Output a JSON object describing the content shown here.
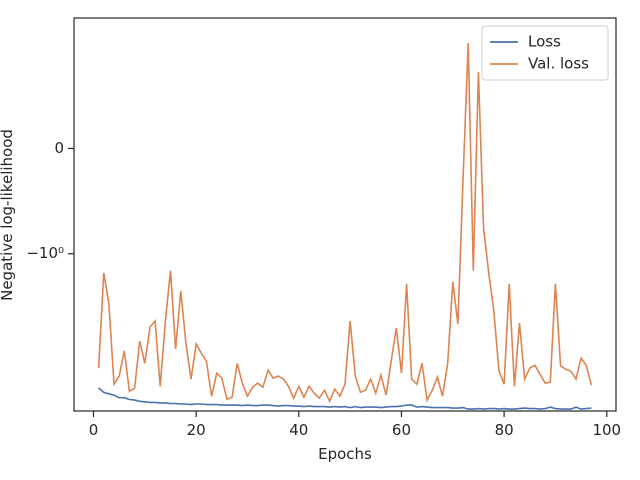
{
  "chart_data": {
    "type": "line",
    "xlabel": "Epochs",
    "ylabel": "Negative log-likelihood",
    "x": [
      1,
      2,
      3,
      4,
      5,
      6,
      7,
      8,
      9,
      10,
      11,
      12,
      13,
      14,
      15,
      16,
      17,
      18,
      19,
      20,
      21,
      22,
      23,
      24,
      25,
      26,
      27,
      28,
      29,
      30,
      31,
      32,
      33,
      34,
      35,
      36,
      37,
      38,
      39,
      40,
      41,
      42,
      43,
      44,
      45,
      46,
      47,
      48,
      49,
      50,
      51,
      52,
      53,
      54,
      55,
      56,
      57,
      58,
      59,
      60,
      61,
      62,
      63,
      64,
      65,
      66,
      67,
      68,
      69,
      70,
      71,
      72,
      73,
      74,
      75,
      76,
      77,
      78,
      79,
      80,
      81,
      82,
      83,
      84,
      85,
      86,
      87,
      88,
      89,
      90,
      91,
      92,
      93,
      94,
      95,
      96,
      97
    ],
    "series": [
      {
        "name": "Loss",
        "color": "#4c72b0",
        "values": [
          -26,
          -29,
          -30,
          -31,
          -33,
          -33,
          -34.5,
          -35,
          -36,
          -36.5,
          -37,
          -37,
          -37.5,
          -37.5,
          -38,
          -38,
          -38.5,
          -38.5,
          -39,
          -38.5,
          -38.5,
          -39,
          -39,
          -39,
          -39.5,
          -39.5,
          -39.5,
          -39.5,
          -40,
          -39.5,
          -40,
          -40,
          -39.5,
          -39.5,
          -40,
          -40.5,
          -40,
          -40,
          -40.5,
          -40.5,
          -41,
          -40.5,
          -41,
          -41,
          -41,
          -41.5,
          -41,
          -41.5,
          -41,
          -42,
          -41,
          -42,
          -41.5,
          -41.5,
          -41.5,
          -42,
          -41.5,
          -41,
          -41,
          -40.5,
          -39.5,
          -39.5,
          -41.5,
          -41,
          -41.5,
          -42,
          -42,
          -42,
          -42,
          -42.5,
          -42.5,
          -42,
          -43.5,
          -43.5,
          -43,
          -43.5,
          -43,
          -43,
          -43.5,
          -43,
          -43.5,
          -43.5,
          -43,
          -42.5,
          -43,
          -43,
          -43.5,
          -43,
          -41.5,
          -43,
          -43.5,
          -43.5,
          -43.5,
          -41.5,
          -43.5,
          -43,
          -42.5
        ]
      },
      {
        "name": "Val. loss",
        "color": "#dd8452",
        "values": [
          -16.1,
          -1.59,
          -3.38,
          -23.8,
          -19.5,
          -10.6,
          -28.2,
          -26.2,
          -8.34,
          -14.3,
          -5.93,
          -5.12,
          -25,
          -5.12,
          -1.51,
          -10.1,
          -2.47,
          -8.75,
          -21,
          -8.96,
          -11.2,
          -13.6,
          -31.8,
          -18.2,
          -20.5,
          -34.3,
          -32.6,
          -14.3,
          -23.2,
          -31.8,
          -25.6,
          -23.2,
          -25.6,
          -16.9,
          -20.5,
          -19.5,
          -21,
          -25,
          -33.4,
          -25,
          -32.6,
          -25,
          -29.6,
          -33.4,
          -27.5,
          -36,
          -26.8,
          -31.8,
          -23.8,
          -5.12,
          -19.5,
          -28.9,
          -27.5,
          -21,
          -29.6,
          -19.1,
          -31,
          -13.6,
          -6.07,
          -18.2,
          -2.08,
          -21,
          -23.8,
          -14.3,
          -35.1,
          -27.5,
          -20,
          -31.8,
          -14.3,
          -1.98,
          -5.51,
          -0.305,
          1.0,
          -1.51,
          0.724,
          -0.762,
          -1.59,
          -4.01,
          -17.3,
          -23.8,
          -2.08,
          -25,
          -5.37,
          -21,
          -16.1,
          -15,
          -18.6,
          -23.2,
          -22.6,
          -2.08,
          -15.3,
          -16.5,
          -17.3,
          -21,
          -12.6,
          -15,
          -24.3
        ]
      }
    ],
    "xlim": [
      -3.8,
      101.8
    ],
    "xticks": [
      0,
      20,
      40,
      60,
      80,
      100
    ],
    "yscale": "symlog",
    "linthresh": 1,
    "linscale": 1,
    "ylim": [
      -45.6,
      1.84
    ],
    "yticks": [
      0,
      {
        "value": -1,
        "label": "−10⁰"
      }
    ],
    "grid": false,
    "legend": "upper right"
  }
}
